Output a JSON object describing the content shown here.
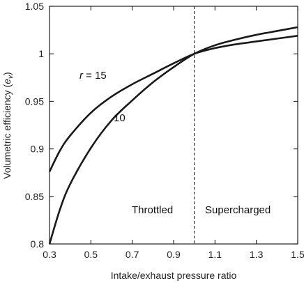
{
  "chart_data": {
    "type": "line",
    "xlabel": "Intake/exhaust pressure ratio",
    "ylabel": {
      "main": "Volumetric efficiency (",
      "symbol": "e",
      "subscript": "v",
      "close": ")"
    },
    "xlim": [
      0.3,
      1.5
    ],
    "ylim": [
      0.8,
      1.05
    ],
    "xticks": [
      0.3,
      0.5,
      0.7,
      0.9,
      1.1,
      1.3,
      1.5
    ],
    "yticks": [
      0.8,
      0.85,
      0.9,
      0.95,
      1,
      1.05
    ],
    "xtick_labels": [
      "0.3",
      "0.5",
      "0.7",
      "0.9",
      "1.1",
      "1.3",
      "1.5"
    ],
    "ytick_labels": [
      "0.8",
      "0.85",
      "0.9",
      "0.95",
      "1",
      "1.05"
    ],
    "grid": false,
    "series": [
      {
        "name": "r = 15",
        "x": [
          0.3,
          0.35,
          0.4,
          0.5,
          0.6,
          0.7,
          0.8,
          0.9,
          1.0,
          1.1,
          1.2,
          1.3,
          1.4,
          1.5
        ],
        "y": [
          0.876,
          0.898,
          0.914,
          0.938,
          0.955,
          0.968,
          0.979,
          0.99,
          1.0,
          1.006,
          1.01,
          1.013,
          1.016,
          1.019
        ]
      },
      {
        "name": "10",
        "x": [
          0.3,
          0.35,
          0.4,
          0.5,
          0.6,
          0.7,
          0.8,
          0.9,
          1.0,
          1.1,
          1.2,
          1.3,
          1.4,
          1.5
        ],
        "y": [
          0.8,
          0.836,
          0.863,
          0.901,
          0.93,
          0.951,
          0.97,
          0.986,
          1.0,
          1.009,
          1.015,
          1.02,
          1.024,
          1.028
        ]
      }
    ],
    "reference_line": {
      "x": 1.0,
      "style": "dashed"
    },
    "annotations": {
      "r15_label": {
        "italic": "r",
        "rest": " = 15"
      },
      "r10_label": "10",
      "throttled": "Throttled",
      "supercharged": "Supercharged"
    }
  }
}
